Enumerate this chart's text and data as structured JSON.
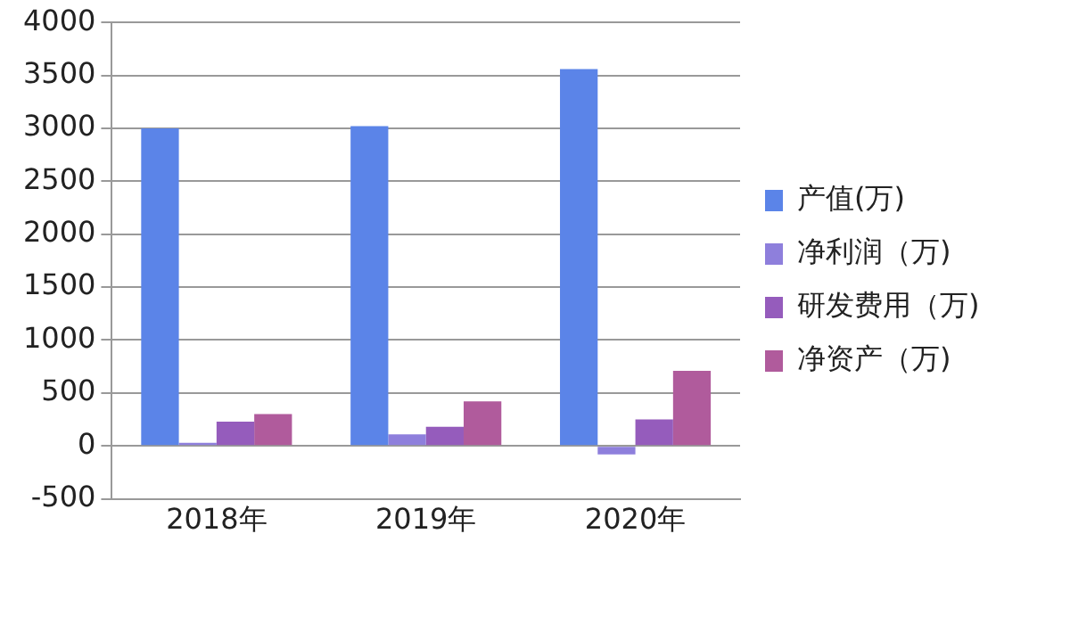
{
  "chart_data": {
    "type": "bar",
    "categories": [
      "2018年",
      "2019年",
      "2020年"
    ],
    "series": [
      {
        "name": "产值(万)",
        "color": "#5b84e8",
        "values": [
          3000,
          3020,
          3560
        ]
      },
      {
        "name": "净利润（万)",
        "color": "#8e7fdc",
        "values": [
          30,
          110,
          -80
        ]
      },
      {
        "name": "研发费用（万)",
        "color": "#955cbc",
        "values": [
          230,
          180,
          250
        ]
      },
      {
        "name": "净资产（万)",
        "color": "#b05b9c",
        "values": [
          300,
          420,
          710
        ]
      }
    ],
    "ylim": [
      -500,
      4000
    ],
    "yticks": [
      -500,
      0,
      500,
      1000,
      1500,
      2000,
      2500,
      3000,
      3500,
      4000
    ],
    "grid": "y",
    "legend": "right"
  }
}
